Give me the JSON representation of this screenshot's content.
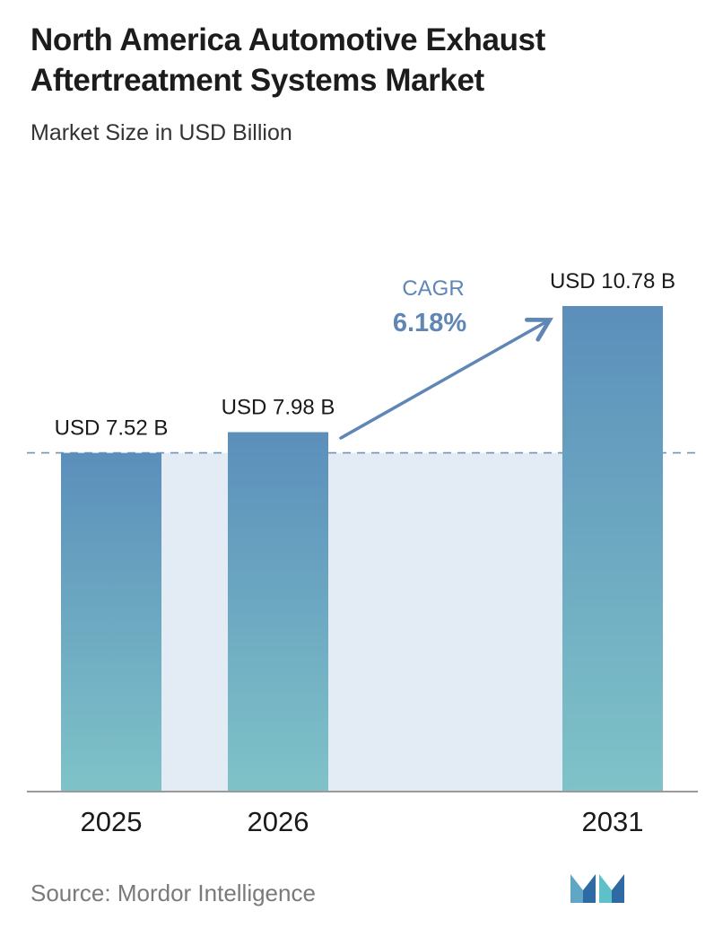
{
  "header": {
    "title": "North America Automotive Exhaust Aftertreatment Systems Market",
    "subtitle": "Market Size in USD Billion"
  },
  "footer": {
    "source": "Source:  Mordor Intelligence"
  },
  "colors": {
    "bar_top": "#5b8fbb",
    "bar_bottom": "#7fc3c8",
    "band": "#e3ecf4",
    "cagr": "#5f86b5",
    "baseline": "#9a9a9a"
  },
  "cagr": {
    "label": "CAGR",
    "value": "6.18%"
  },
  "chart_data": {
    "type": "bar",
    "title": "North America Automotive Exhaust Aftertreatment Systems Market",
    "subtitle": "Market Size in USD Billion",
    "categories": [
      "2025",
      "2026",
      "2031"
    ],
    "values": [
      7.52,
      7.98,
      10.78
    ],
    "value_labels": [
      "USD 7.52 B",
      "USD 7.98 B",
      "USD 10.78 B"
    ],
    "annotation": "CAGR 6.18%",
    "grid": false
  }
}
